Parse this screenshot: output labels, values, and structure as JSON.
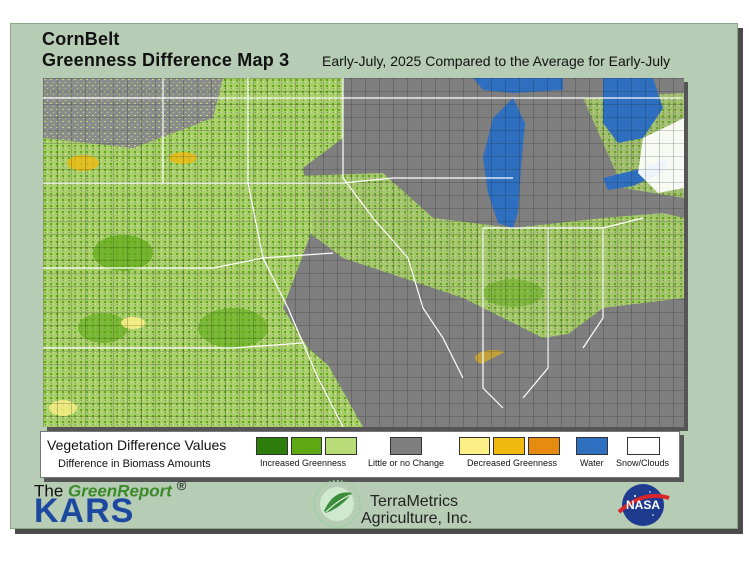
{
  "title": {
    "line1": "CornBelt",
    "line2": "Greenness Difference Map 3",
    "subtitle": "Early-July, 2025 Compared to the Average for Early-July"
  },
  "legend": {
    "title": "Vegetation Difference Values",
    "subtitle": "Difference in Biomass Amounts",
    "groups": [
      {
        "label": "Increased Greenness",
        "colors": [
          "#2d7d0d",
          "#5ea814",
          "#b9dc78"
        ]
      },
      {
        "label": "Little or no Change",
        "colors": [
          "#7f7f7f"
        ]
      },
      {
        "label": "Decreased Greenness",
        "colors": [
          "#fbef86",
          "#efb90f",
          "#e78a10"
        ]
      },
      {
        "label": "Water",
        "colors": [
          "#2f6fc0"
        ]
      },
      {
        "label": "Snow/Clouds",
        "colors": [
          "#ffffff"
        ]
      }
    ]
  },
  "footer": {
    "green_report_prefix": "The ",
    "green_report_name": "GreenReport",
    "registered_mark": "®",
    "kars": "KARS",
    "terrametrics_line1": "TerraMetrics",
    "terrametrics_line2": "Agriculture, Inc.",
    "nasa": "NASA"
  },
  "colors": {
    "panel_bg": "#b6ccb4",
    "no_change": "#7f7f7f",
    "water": "#2f6fc0",
    "kars_blue": "#1d48a0"
  }
}
